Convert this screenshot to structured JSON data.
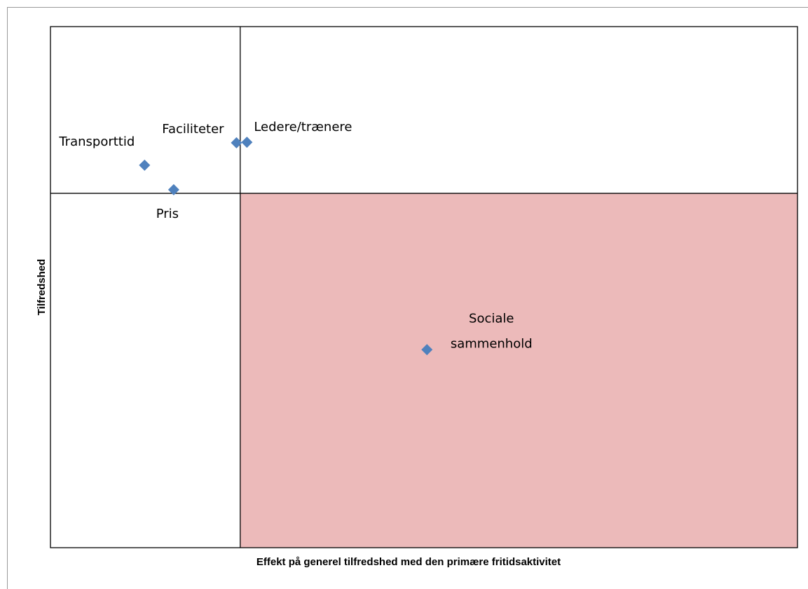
{
  "chart_data": {
    "type": "scatter",
    "x_label": "Effekt på generel tilfredshed med den primære fritidsaktivitet",
    "y_label": "Tilfredshed",
    "labels": [
      [
        "Transporttid"
      ],
      [
        "Pris"
      ],
      [
        "Faciliteter"
      ],
      [
        "Ledere/trænere"
      ],
      [
        "Sociale",
        "sammenhold"
      ]
    ],
    "x": [
      12.6,
      16.5,
      24.9,
      26.3,
      50.4
    ],
    "values": [
      73.4,
      68.7,
      77.7,
      77.8,
      38.0
    ],
    "color": "#4f81bd",
    "xlim": [
      0,
      100
    ],
    "ylim": [
      0,
      100
    ],
    "quadrant_x": 25.4,
    "quadrant_y": 68.0,
    "highlight_color": "#ecbaba"
  }
}
